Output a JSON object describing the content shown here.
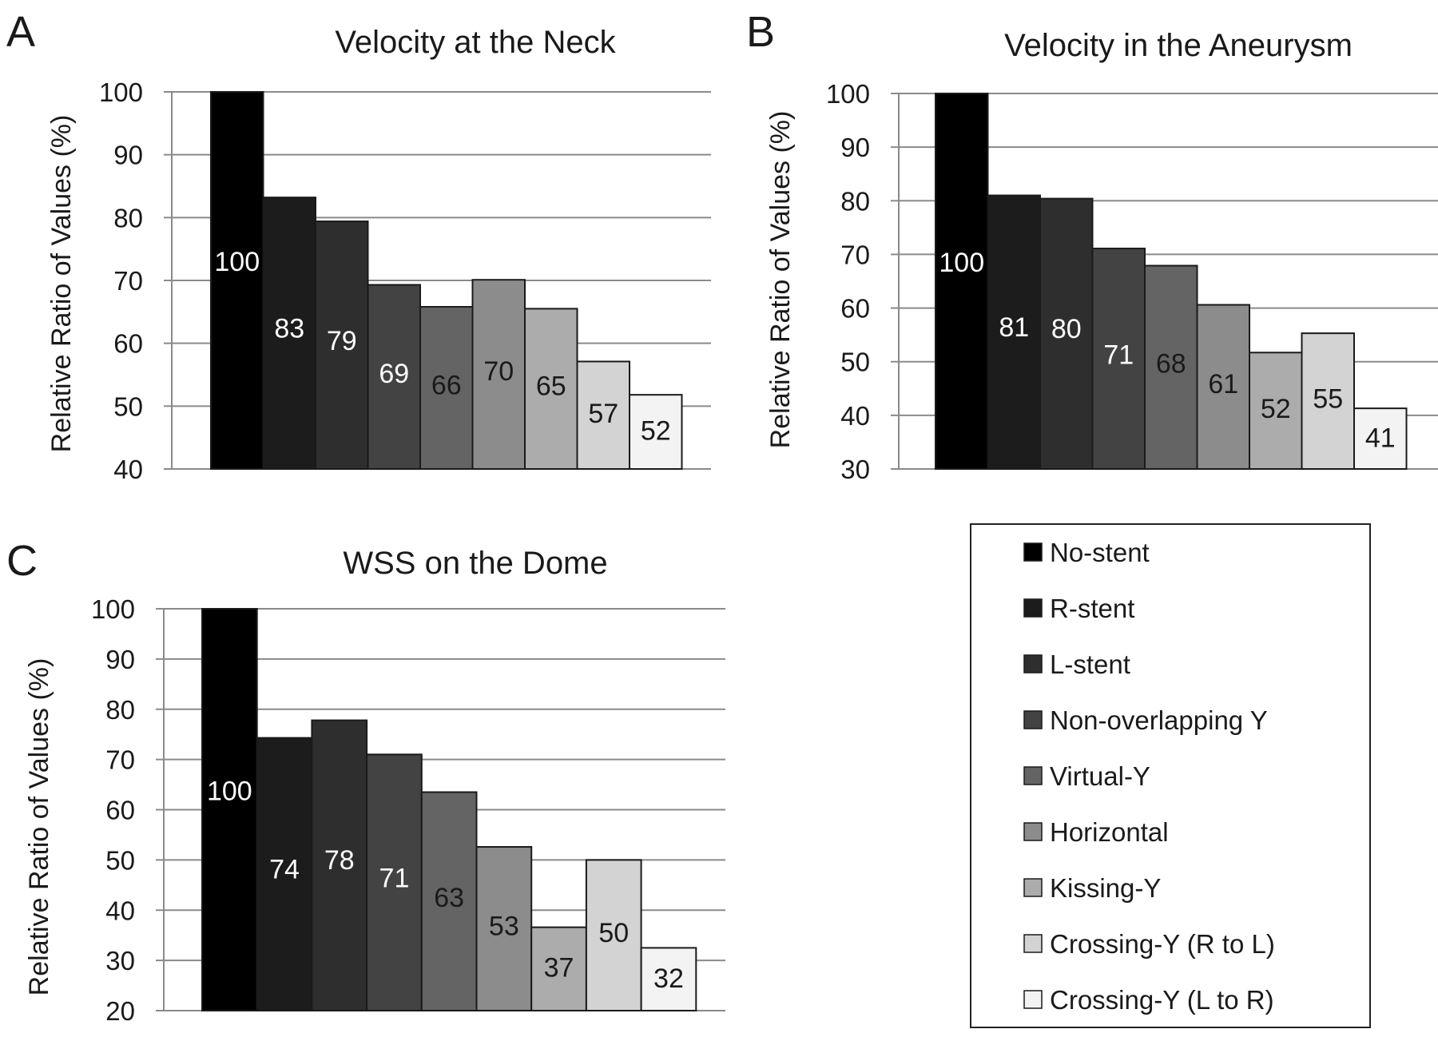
{
  "legend": {
    "items": [
      {
        "label": "No-stent",
        "color": "#000000"
      },
      {
        "label": "R-stent",
        "color": "#1c1c1c"
      },
      {
        "label": "L-stent",
        "color": "#2e2e2e"
      },
      {
        "label": "Non-overlapping Y",
        "color": "#434343"
      },
      {
        "label": "Virtual-Y",
        "color": "#646464"
      },
      {
        "label": "Horizontal",
        "color": "#8c8c8c"
      },
      {
        "label": "Kissing-Y",
        "color": "#acacac"
      },
      {
        "label": "Crossing-Y (R to L)",
        "color": "#d3d3d3"
      },
      {
        "label": "Crossing-Y (L to R)",
        "color": "#f3f3f3"
      }
    ]
  },
  "label_colors": [
    "#ffffff",
    "#ffffff",
    "#ffffff",
    "#ffffff",
    "#1a1a1a",
    "#1a1a1a",
    "#1a1a1a",
    "#1a1a1a",
    "#1a1a1a"
  ],
  "chart_data": [
    {
      "panel": "A",
      "type": "bar",
      "title": "Velocity at the Neck",
      "ylabel": "Relative Ratio of Values (%)",
      "ylim": [
        40,
        100
      ],
      "yticks": [
        40,
        50,
        60,
        70,
        80,
        90,
        100
      ],
      "grid": true,
      "categories": [
        "No-stent",
        "R-stent",
        "L-stent",
        "Non-overlapping Y",
        "Virtual-Y",
        "Horizontal",
        "Kissing-Y",
        "Crossing-Y (R to L)",
        "Crossing-Y (L to R)"
      ],
      "values": [
        100,
        83.2,
        79.4,
        69.3,
        65.8,
        70.1,
        65.5,
        57.1,
        51.8
      ],
      "data_labels": [
        "100",
        "83",
        "79",
        "69",
        "66",
        "70",
        "65",
        "57",
        "52"
      ]
    },
    {
      "panel": "B",
      "type": "bar",
      "title": "Velocity in the Aneurysm",
      "ylabel": "Relative Ratio of Values (%)",
      "ylim": [
        30,
        100
      ],
      "yticks": [
        30,
        40,
        50,
        60,
        70,
        80,
        90,
        100
      ],
      "grid": true,
      "categories": [
        "No-stent",
        "R-stent",
        "L-stent",
        "Non-overlapping Y",
        "Virtual-Y",
        "Horizontal",
        "Kissing-Y",
        "Crossing-Y (R to L)",
        "Crossing-Y (L to R)"
      ],
      "values": [
        100,
        81.0,
        80.4,
        71.1,
        67.9,
        60.6,
        51.7,
        55.3,
        41.3
      ],
      "data_labels": [
        "100",
        "81",
        "80",
        "71",
        "68",
        "61",
        "52",
        "55",
        "41"
      ]
    },
    {
      "panel": "C",
      "type": "bar",
      "title": "WSS on the Dome",
      "ylabel": "Relative Ratio of Values (%)",
      "ylim": [
        20,
        100
      ],
      "yticks": [
        20,
        30,
        40,
        50,
        60,
        70,
        80,
        90,
        100
      ],
      "grid": true,
      "categories": [
        "No-stent",
        "R-stent",
        "L-stent",
        "Non-overlapping Y",
        "Virtual-Y",
        "Horizontal",
        "Kissing-Y",
        "Crossing-Y (R to L)",
        "Crossing-Y (L to R)"
      ],
      "values": [
        100,
        74.3,
        77.8,
        71.0,
        63.5,
        52.6,
        36.6,
        50.0,
        32.5
      ],
      "data_labels": [
        "100",
        "74",
        "78",
        "71",
        "63",
        "53",
        "37",
        "50",
        "32"
      ]
    }
  ]
}
